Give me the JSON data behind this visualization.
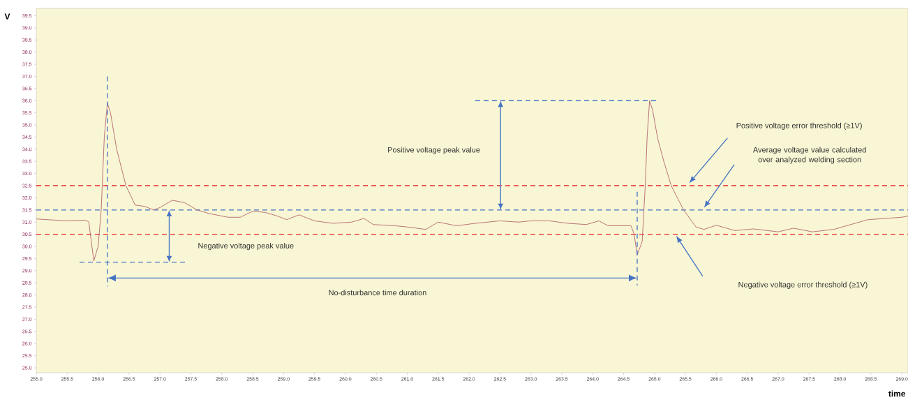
{
  "chart_data": {
    "type": "line",
    "xlabel": "time",
    "ylabel": "V",
    "xlim": [
      255.0,
      269.1
    ],
    "ylim": [
      24.8,
      39.8
    ],
    "xticks": [
      {
        "value": 255.0,
        "label": "255.0"
      },
      {
        "value": 255.5,
        "label": "255.5"
      },
      {
        "value": 256.0,
        "label": "256.0"
      },
      {
        "value": 256.5,
        "label": "256.5"
      },
      {
        "value": 257.0,
        "label": "257.0"
      },
      {
        "value": 257.5,
        "label": "257.5"
      },
      {
        "value": 258.0,
        "label": "258.0"
      },
      {
        "value": 258.5,
        "label": "258.5"
      },
      {
        "value": 259.0,
        "label": "259.0"
      },
      {
        "value": 259.5,
        "label": "259.5"
      },
      {
        "value": 260.0,
        "label": "260.0"
      },
      {
        "value": 260.5,
        "label": "260.5"
      },
      {
        "value": 261.0,
        "label": "261.0"
      },
      {
        "value": 261.5,
        "label": "261.5"
      },
      {
        "value": 262.0,
        "label": "262.0"
      },
      {
        "value": 262.5,
        "label": "262.5"
      },
      {
        "value": 263.0,
        "label": "263.0"
      },
      {
        "value": 263.5,
        "label": "263.5"
      },
      {
        "value": 264.0,
        "label": "264.0"
      },
      {
        "value": 264.5,
        "label": "264.5"
      },
      {
        "value": 265.0,
        "label": "265.0"
      },
      {
        "value": 265.5,
        "label": "265.5"
      },
      {
        "value": 266.0,
        "label": "266.0"
      },
      {
        "value": 266.5,
        "label": "266.5"
      },
      {
        "value": 267.0,
        "label": "267.0"
      },
      {
        "value": 267.5,
        "label": "267.5"
      },
      {
        "value": 268.0,
        "label": "268.0"
      },
      {
        "value": 268.5,
        "label": "268.5"
      },
      {
        "value": 269.0,
        "label": "269.0"
      }
    ],
    "yticks": [
      {
        "value": 25.0,
        "label": "25.0"
      },
      {
        "value": 25.5,
        "label": "25.5"
      },
      {
        "value": 26.0,
        "label": "26.0"
      },
      {
        "value": 26.5,
        "label": "26.5"
      },
      {
        "value": 27.0,
        "label": "27.0"
      },
      {
        "value": 27.5,
        "label": "27.5"
      },
      {
        "value": 28.0,
        "label": "28.0"
      },
      {
        "value": 28.5,
        "label": "28.5"
      },
      {
        "value": 29.0,
        "label": "29.0"
      },
      {
        "value": 29.5,
        "label": "29.5"
      },
      {
        "value": 30.0,
        "label": "30.0"
      },
      {
        "value": 30.5,
        "label": "30.5"
      },
      {
        "value": 31.0,
        "label": "31.0"
      },
      {
        "value": 31.5,
        "label": "31.5"
      },
      {
        "value": 32.0,
        "label": "32.0"
      },
      {
        "value": 32.5,
        "label": "32.5"
      },
      {
        "value": 33.0,
        "label": "33.0"
      },
      {
        "value": 33.5,
        "label": "33.5"
      },
      {
        "value": 34.0,
        "label": "34.0"
      },
      {
        "value": 34.5,
        "label": "34.5"
      },
      {
        "value": 35.0,
        "label": "35.0"
      },
      {
        "value": 35.5,
        "label": "35.5"
      },
      {
        "value": 36.0,
        "label": "36.0"
      },
      {
        "value": 36.5,
        "label": "36.5"
      },
      {
        "value": 37.0,
        "label": "37.0"
      },
      {
        "value": 37.5,
        "label": "37.5"
      },
      {
        "value": 38.0,
        "label": "38.0"
      },
      {
        "value": 38.5,
        "label": "38.5"
      },
      {
        "value": 39.0,
        "label": "39.0"
      },
      {
        "value": 39.5,
        "label": "39.5"
      }
    ],
    "x": [
      255.0,
      255.5,
      255.8,
      255.85,
      255.93,
      256.0,
      256.05,
      256.1,
      256.15,
      256.2,
      256.3,
      256.45,
      256.6,
      256.75,
      256.9,
      257.0,
      257.2,
      257.4,
      257.6,
      257.8,
      258.1,
      258.3,
      258.5,
      258.7,
      258.9,
      259.05,
      259.25,
      259.5,
      259.8,
      260.1,
      260.3,
      260.45,
      260.8,
      261.0,
      261.3,
      261.5,
      261.8,
      262.1,
      262.5,
      262.8,
      263.0,
      263.3,
      263.6,
      263.9,
      264.1,
      264.25,
      264.5,
      264.62,
      264.67,
      264.72,
      264.8,
      264.85,
      264.88,
      264.92,
      264.97,
      265.05,
      265.15,
      265.27,
      265.47,
      265.67,
      265.8,
      266.0,
      266.3,
      266.6,
      267.0,
      267.25,
      267.55,
      267.9,
      268.45,
      269.0,
      269.1
    ],
    "values": [
      31.13,
      31.05,
      31.08,
      31.0,
      29.4,
      30.0,
      31.5,
      34.5,
      35.9,
      35.5,
      34.0,
      32.5,
      31.7,
      31.65,
      31.5,
      31.6,
      31.9,
      31.8,
      31.5,
      31.35,
      31.2,
      31.2,
      31.45,
      31.4,
      31.25,
      31.1,
      31.3,
      31.05,
      30.95,
      31.0,
      31.15,
      30.9,
      30.85,
      30.8,
      30.7,
      31.0,
      30.85,
      30.95,
      31.05,
      31.0,
      31.05,
      31.05,
      30.95,
      30.9,
      31.05,
      30.85,
      30.85,
      30.85,
      30.5,
      29.65,
      30.2,
      32.5,
      34.5,
      36.0,
      35.6,
      34.45,
      33.5,
      32.5,
      31.5,
      30.8,
      30.7,
      30.87,
      30.65,
      30.72,
      30.6,
      30.75,
      30.6,
      30.7,
      31.1,
      31.2,
      31.25
    ],
    "color": "#b4646f",
    "marker": "none",
    "ref_lines": [
      {
        "axis": "y",
        "value": 32.5,
        "color": "#e8262a",
        "line_style": "dashed"
      },
      {
        "axis": "y",
        "value": 31.5,
        "color": "#4472c4",
        "line_style": "dashed"
      },
      {
        "axis": "y",
        "value": 30.5,
        "color": "#e8262a",
        "line_style": "dashed"
      }
    ],
    "annotations": [
      "Positive voltage peak value",
      "Negative voltage peak value",
      "No-disturbance time duration",
      "Positive voltage error threshold (≥1V)",
      "Average voltage value calculated over analyzed welding section",
      "Negative voltage error threshold (≥1V)"
    ]
  }
}
